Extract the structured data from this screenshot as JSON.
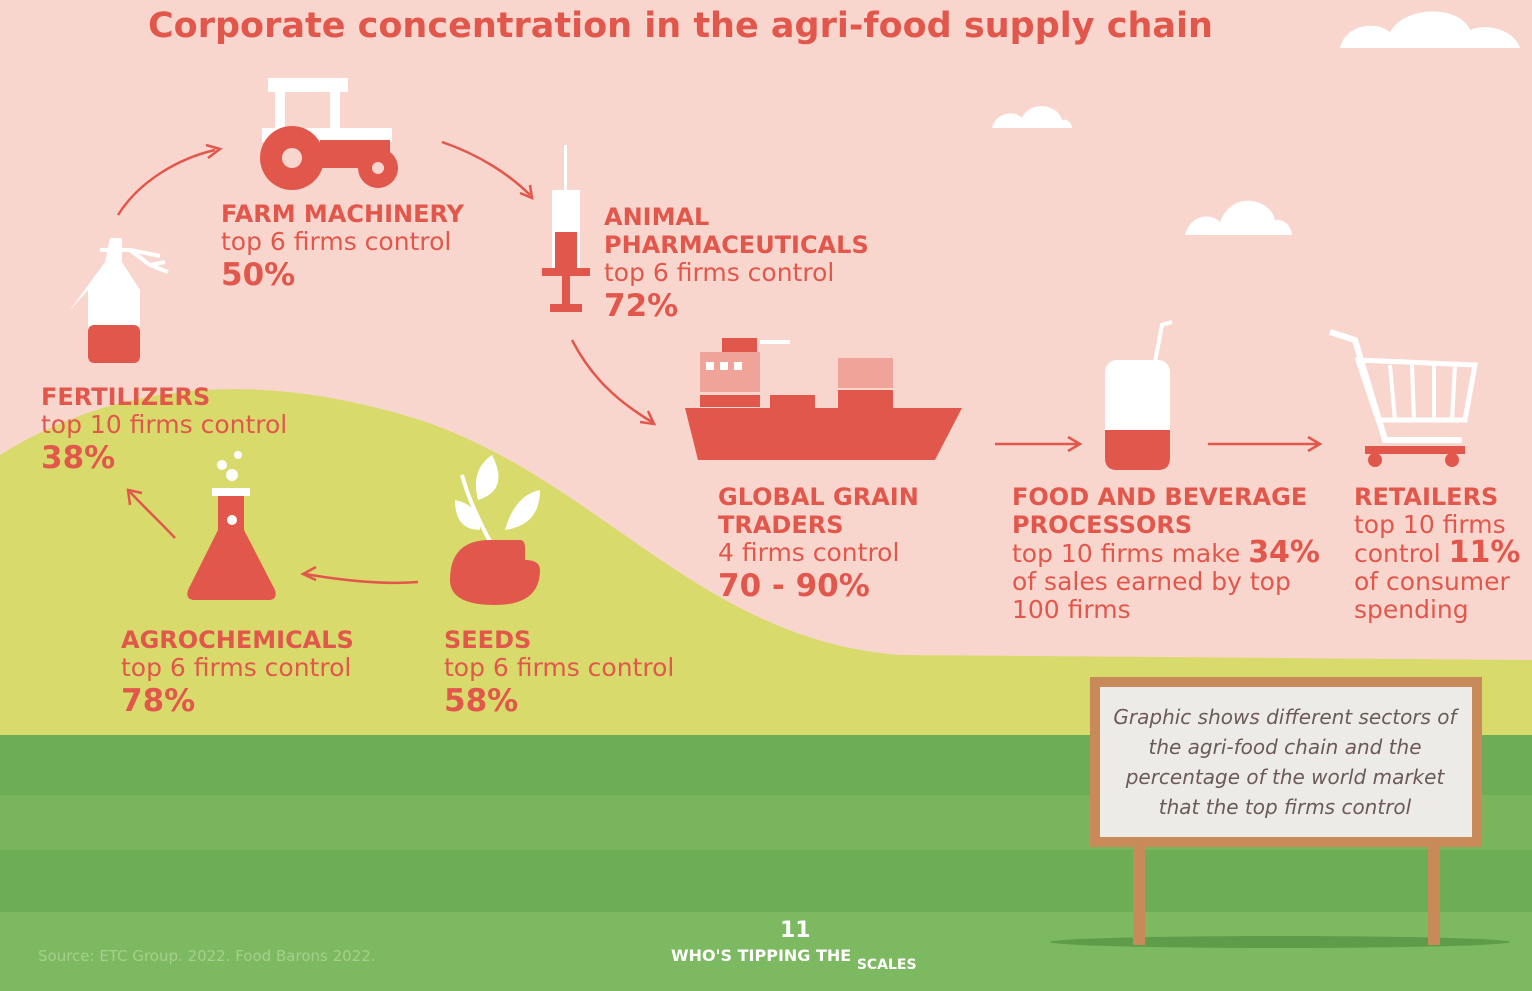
{
  "header": {
    "title": "Corporate concentration in the agri-food supply chain"
  },
  "sectors": [
    {
      "name": "FARM MACHINERY",
      "text": "top 6 firms control",
      "value": "50%"
    },
    {
      "name": "ANIMAL PHARMACEUTICALS",
      "text": "top 6 firms control",
      "value": "72%"
    },
    {
      "name": "FERTILIZERS",
      "text": "top 10 firms control",
      "value": "38%"
    },
    {
      "name": "GLOBAL GRAIN TRADERS",
      "text": "4 firms control",
      "value": "70 - 90%"
    },
    {
      "name": "FOOD AND BEVERAGE PROCESSORS",
      "text": "top 10 firms make",
      "value": "34%",
      "text_after": "of sales earned by top 100 firms"
    },
    {
      "name": "RETAILERS",
      "text": "top 10 firms control",
      "value": "11%",
      "text_after": "of consumer spending"
    },
    {
      "name": "AGROCHEMICALS",
      "text": "top 6 firms control",
      "value": "78%"
    },
    {
      "name": "SEEDS",
      "text": "top 6 firms control",
      "value": "58%"
    }
  ],
  "sign": {
    "text": "Graphic shows different sectors of the agri-food chain and the percentage of the world market that the top firms control"
  },
  "footer": {
    "source": "Source: ETC Group. 2022. Food Barons 2022.",
    "page": "11",
    "brand": "WHO'S TIPPING THE",
    "brand_end": "SCALES"
  }
}
